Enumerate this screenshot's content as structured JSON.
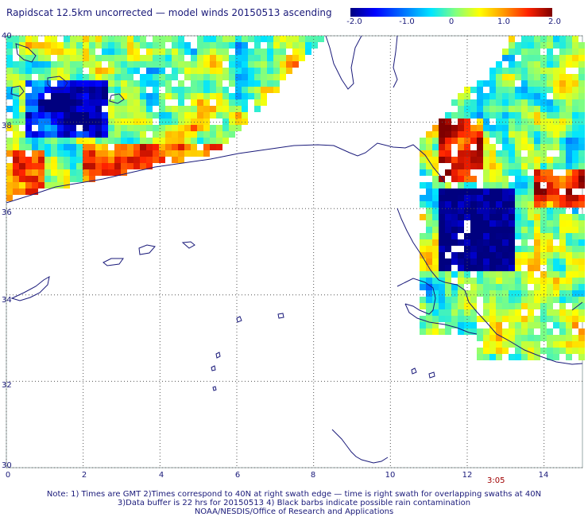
{
  "title": "Rapidscat 12.5km uncorrected — model winds 20150513 ascending",
  "colorbar": {
    "labels": [
      "-2.0",
      "-1.0",
      "0",
      "1.0",
      "2.0"
    ],
    "range": [
      -2.0,
      2.0
    ],
    "colors": [
      "#00007f",
      "#0000ff",
      "#0080ff",
      "#00e5ff",
      "#80ff80",
      "#ffff00",
      "#ff9900",
      "#ff2200",
      "#7f0000"
    ]
  },
  "map": {
    "lat_range": [
      30,
      40
    ],
    "lon_range": [
      0,
      15
    ],
    "lat_labels": [
      "40",
      "38",
      "36",
      "34",
      "32",
      "30"
    ],
    "lon_labels": [
      "0",
      "2",
      "4",
      "6",
      "8",
      "10",
      "12",
      "14"
    ],
    "grid_style": "dotted"
  },
  "time_label": "3:05",
  "notes": [
    "Note: 1) Times are GMT 2)Times correspond to 40N at right swath edge — time is right swath for overlapping swaths at 40N",
    "3)Data buffer is 22 hrs for 20150513 4) Black barbs indicate possible rain contamination",
    "NOAA/NESDIS/Office of Research and Applications"
  ]
}
